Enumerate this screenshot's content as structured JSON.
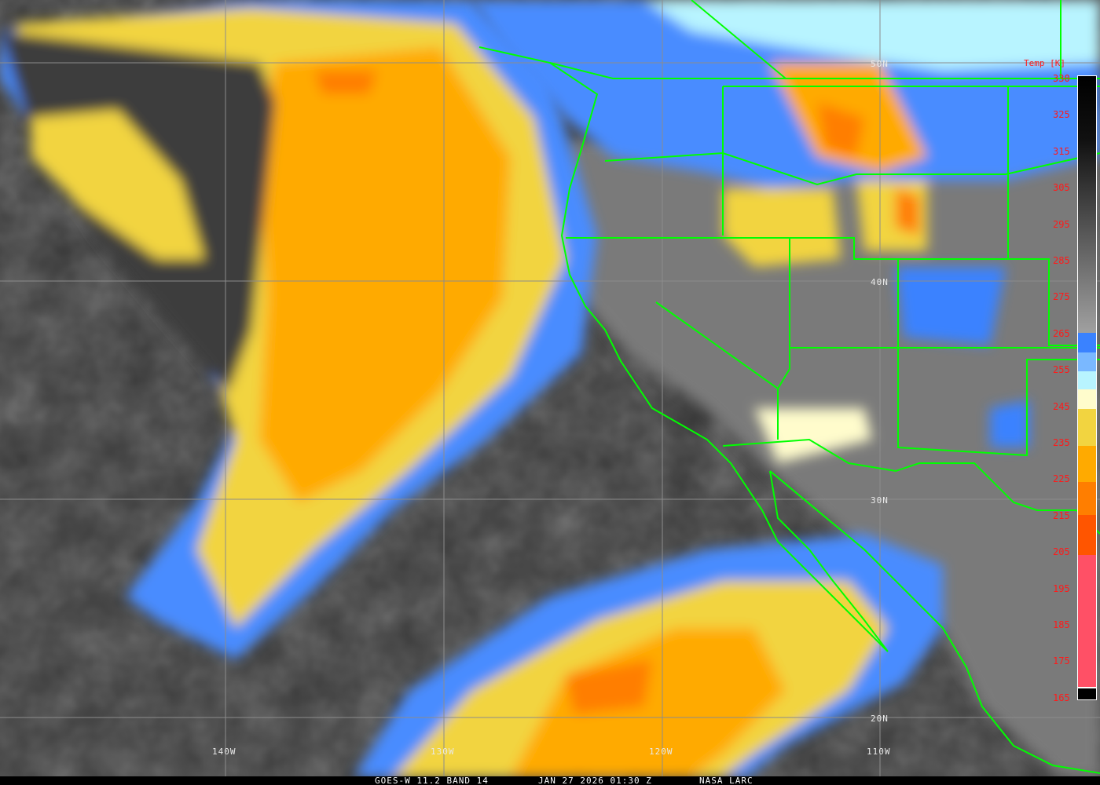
{
  "footer": {
    "satellite": "GOES-W 11.2 BAND 14",
    "datetime": "JAN 27 2026 01:30 Z",
    "credit": "NASA LARC"
  },
  "colorbar": {
    "title": "Temp [K]",
    "labels": [
      "330",
      "325",
      "315",
      "305",
      "295",
      "285",
      "275",
      "265",
      "255",
      "245",
      "235",
      "225",
      "215",
      "205",
      "195",
      "185",
      "175",
      "165"
    ],
    "segments": [
      {
        "from": 330,
        "to": 262,
        "color": "gradient #000000-#a0a0a0"
      },
      {
        "from": 262,
        "to": 257,
        "color": "#3a82ff"
      },
      {
        "from": 257,
        "to": 252,
        "color": "#7ab8ff"
      },
      {
        "from": 252,
        "to": 247,
        "color": "#b8f4ff"
      },
      {
        "from": 247,
        "to": 242,
        "color": "#fffccc"
      },
      {
        "from": 242,
        "to": 232,
        "color": "#f2d440"
      },
      {
        "from": 232,
        "to": 222,
        "color": "#ffaa00"
      },
      {
        "from": 222,
        "to": 213,
        "color": "#ff7e00"
      },
      {
        "from": 213,
        "to": 202,
        "color": "#ff5500"
      },
      {
        "from": 202,
        "to": 166,
        "color": "#ff5066"
      },
      {
        "from": 166,
        "to": 163,
        "color": "#000000"
      }
    ]
  },
  "grid": {
    "latitudes": [
      "50N",
      "40N",
      "30N",
      "20N"
    ],
    "longitudes": [
      "140W",
      "130W",
      "120W",
      "110W"
    ]
  },
  "colors": {
    "border": "#00ff00",
    "grid": "#8c8c8c",
    "label": "#ff1a1a"
  }
}
